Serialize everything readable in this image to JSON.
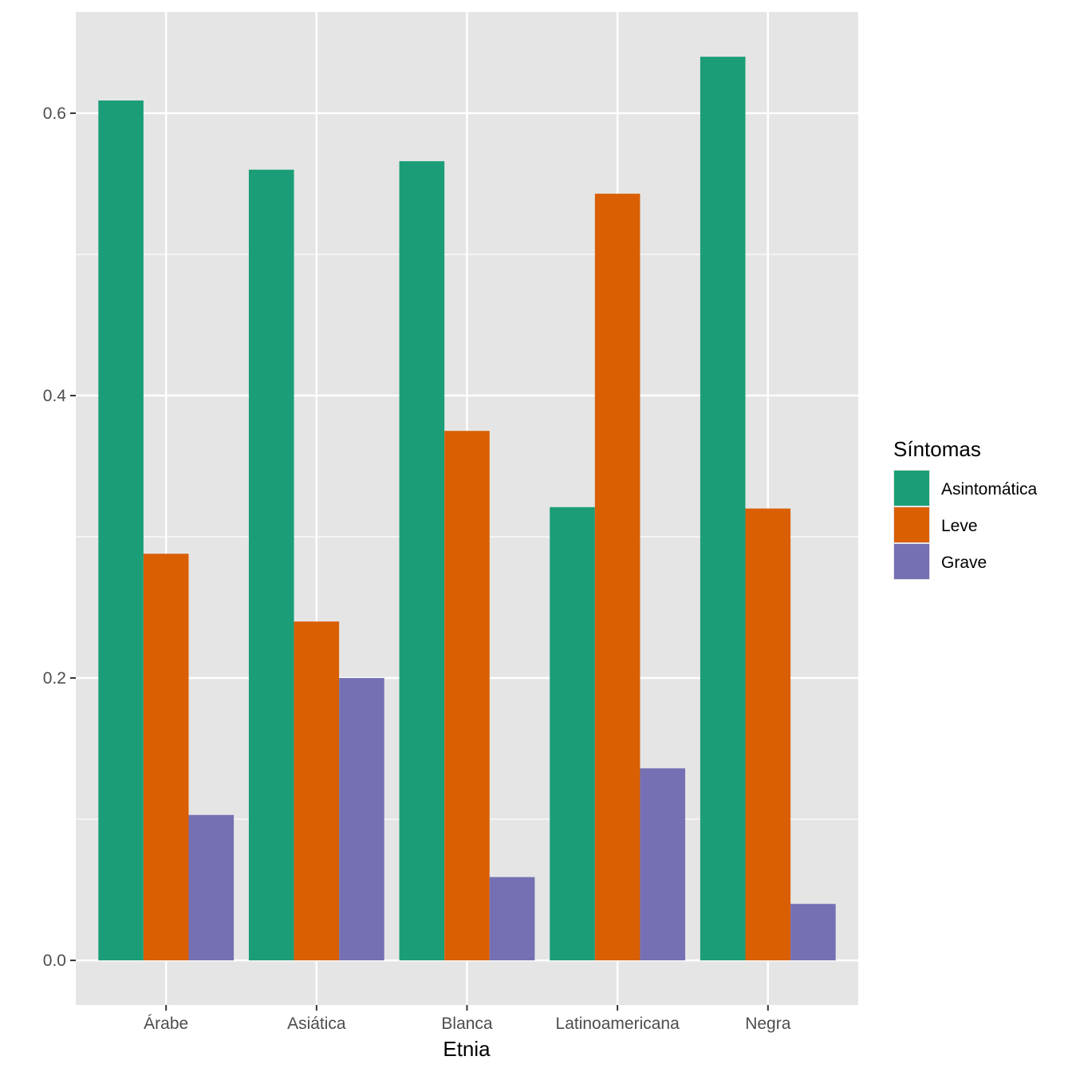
{
  "chart_data": {
    "type": "bar",
    "xlabel": "Etnia",
    "ylabel": "",
    "categories": [
      "Árabe",
      "Asiática",
      "Blanca",
      "Latinoamericana",
      "Negra"
    ],
    "series": [
      {
        "name": "Asintomática",
        "color": "#1B9E77",
        "values": [
          0.609,
          0.56,
          0.566,
          0.321,
          0.64
        ]
      },
      {
        "name": "Leve",
        "color": "#D95F02",
        "values": [
          0.288,
          0.24,
          0.375,
          0.543,
          0.32
        ]
      },
      {
        "name": "Grave",
        "color": "#7570B3",
        "values": [
          0.103,
          0.2,
          0.059,
          0.136,
          0.04
        ]
      }
    ],
    "ylim": [
      -0.0316,
      0.6717
    ],
    "yticks": [
      0.0,
      0.2,
      0.4,
      0.6
    ],
    "ytick_labels": [
      "0.0",
      "0.2",
      "0.4",
      "0.6"
    ],
    "grid": true,
    "legend": {
      "title": "Síntomas",
      "position": "right"
    },
    "panel_background": "#E5E5E5",
    "grid_color": "#FFFFFF"
  }
}
